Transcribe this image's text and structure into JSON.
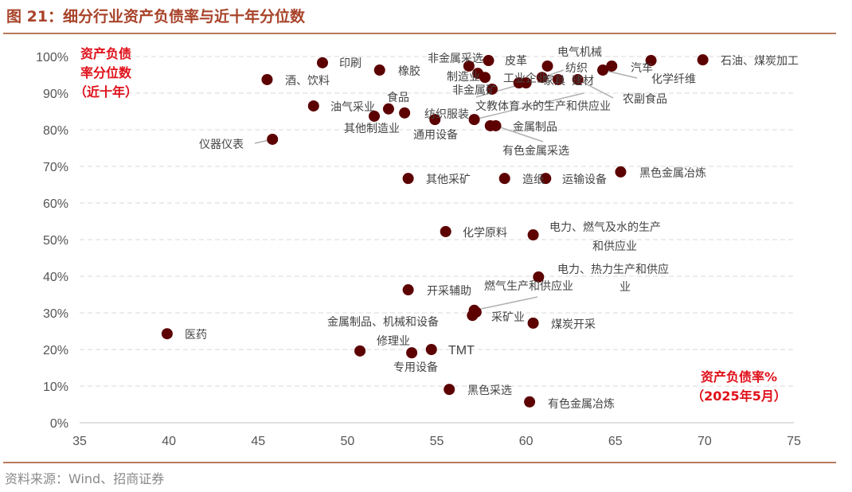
{
  "title": "图 21：细分行业资产负债率与近十年分位数",
  "source": "资料来源：Wind、招商证券",
  "chart_data": {
    "type": "scatter",
    "xlabel": [
      "资产负债率%",
      "（2025年5月）"
    ],
    "ylabel": [
      "资产负债",
      "率分位数",
      "（近十年）"
    ],
    "xlim": [
      35,
      75
    ],
    "ylim": [
      0,
      100
    ],
    "xticks": [
      "35",
      "40",
      "45",
      "50",
      "55",
      "60",
      "65",
      "70",
      "75"
    ],
    "yticks": [
      "0%",
      "10%",
      "20%",
      "30%",
      "40%",
      "50%",
      "60%",
      "70%",
      "80%",
      "90%",
      "100%"
    ],
    "grid": "horizontal dashed",
    "marker_color": "#5c0000",
    "points": [
      {
        "label": "医药",
        "x": 39.9,
        "y": 24.3
      },
      {
        "label": "仪器仪表",
        "x": 45.8,
        "y": 77.4
      },
      {
        "label": "酒、饮料",
        "x": 45.5,
        "y": 93.7
      },
      {
        "label": "印刷",
        "x": 48.6,
        "y": 98.3
      },
      {
        "label": "油气采业",
        "x": 48.1,
        "y": 86.5
      },
      {
        "label": "橡胶",
        "x": 51.8,
        "y": 96.3
      },
      {
        "label": "食品",
        "x": 52.3,
        "y": 85.7
      },
      {
        "label": "其他制造业",
        "x": 51.5,
        "y": 83.7
      },
      {
        "label": "纺织服装",
        "x": 53.2,
        "y": 84.6
      },
      {
        "label": "通用设备",
        "x": 54.9,
        "y": 82.8
      },
      {
        "label": "非金属采选",
        "x": 56.8,
        "y": 97.4
      },
      {
        "label": "皮革",
        "x": 57.9,
        "y": 98.9
      },
      {
        "label": "制造业",
        "x": 57.3,
        "y": 95.4
      },
      {
        "label": "",
        "x": 57.7,
        "y": 94.3
      },
      {
        "label": "非金属矿",
        "x": 58.1,
        "y": 91.1
      },
      {
        "label": "工业企业",
        "x": 59.6,
        "y": 92.8
      },
      {
        "label": "文教体育",
        "x": 60.0,
        "y": 92.8
      },
      {
        "label": "纺织",
        "x": 60.9,
        "y": 94.3
      },
      {
        "label": "家具",
        "x": 61.2,
        "y": 97.4
      },
      {
        "label": "建材",
        "x": 61.8,
        "y": 93.7
      },
      {
        "label": "农副食品",
        "x": 62.9,
        "y": 93.7
      },
      {
        "label": "化学纤维",
        "x": 64.3,
        "y": 96.3
      },
      {
        "label": "电气机械",
        "x": 64.8,
        "y": 97.4
      },
      {
        "label": "汽车",
        "x": 67.0,
        "y": 98.9
      },
      {
        "label": "石油、煤炭加工",
        "x": 69.9,
        "y": 99.1
      },
      {
        "label": "水的生产和供应业",
        "x": 57.1,
        "y": 82.8
      },
      {
        "label": "金属制品",
        "x": 58.0,
        "y": 81.1
      },
      {
        "label": "有色金属采选",
        "x": 58.3,
        "y": 81.1
      },
      {
        "label": "其他采矿",
        "x": 53.4,
        "y": 66.7
      },
      {
        "label": "造纸",
        "x": 58.8,
        "y": 66.7
      },
      {
        "label": "运输设备",
        "x": 61.1,
        "y": 66.7
      },
      {
        "label": "黑色金属冶炼",
        "x": 65.3,
        "y": 68.5
      },
      {
        "label": "化学原料",
        "x": 55.5,
        "y": 52.2
      },
      {
        "label": "电力、燃气及水的生产和供应业",
        "x": 60.4,
        "y": 51.3
      },
      {
        "label": "电力、热力生产和供应业",
        "x": 60.7,
        "y": 39.8
      },
      {
        "label": "开采辅助",
        "x": 53.4,
        "y": 36.3
      },
      {
        "label": "燃气生产和供应业",
        "x": 57.1,
        "y": 30.7
      },
      {
        "label": "金属制品、机械和设备",
        "x": 57.0,
        "y": 29.3
      },
      {
        "label": "采矿业",
        "x": 57.2,
        "y": 30.2
      },
      {
        "label": "煤炭开采",
        "x": 60.4,
        "y": 27.2
      },
      {
        "label": "修理业",
        "x": 50.7,
        "y": 19.6
      },
      {
        "label": "专用设备",
        "x": 53.6,
        "y": 19.1
      },
      {
        "label": "TMT",
        "x": 54.7,
        "y": 20.0
      },
      {
        "label": "黑色采选",
        "x": 55.7,
        "y": 9.1
      },
      {
        "label": "有色金属冶炼",
        "x": 60.2,
        "y": 5.7
      }
    ]
  }
}
